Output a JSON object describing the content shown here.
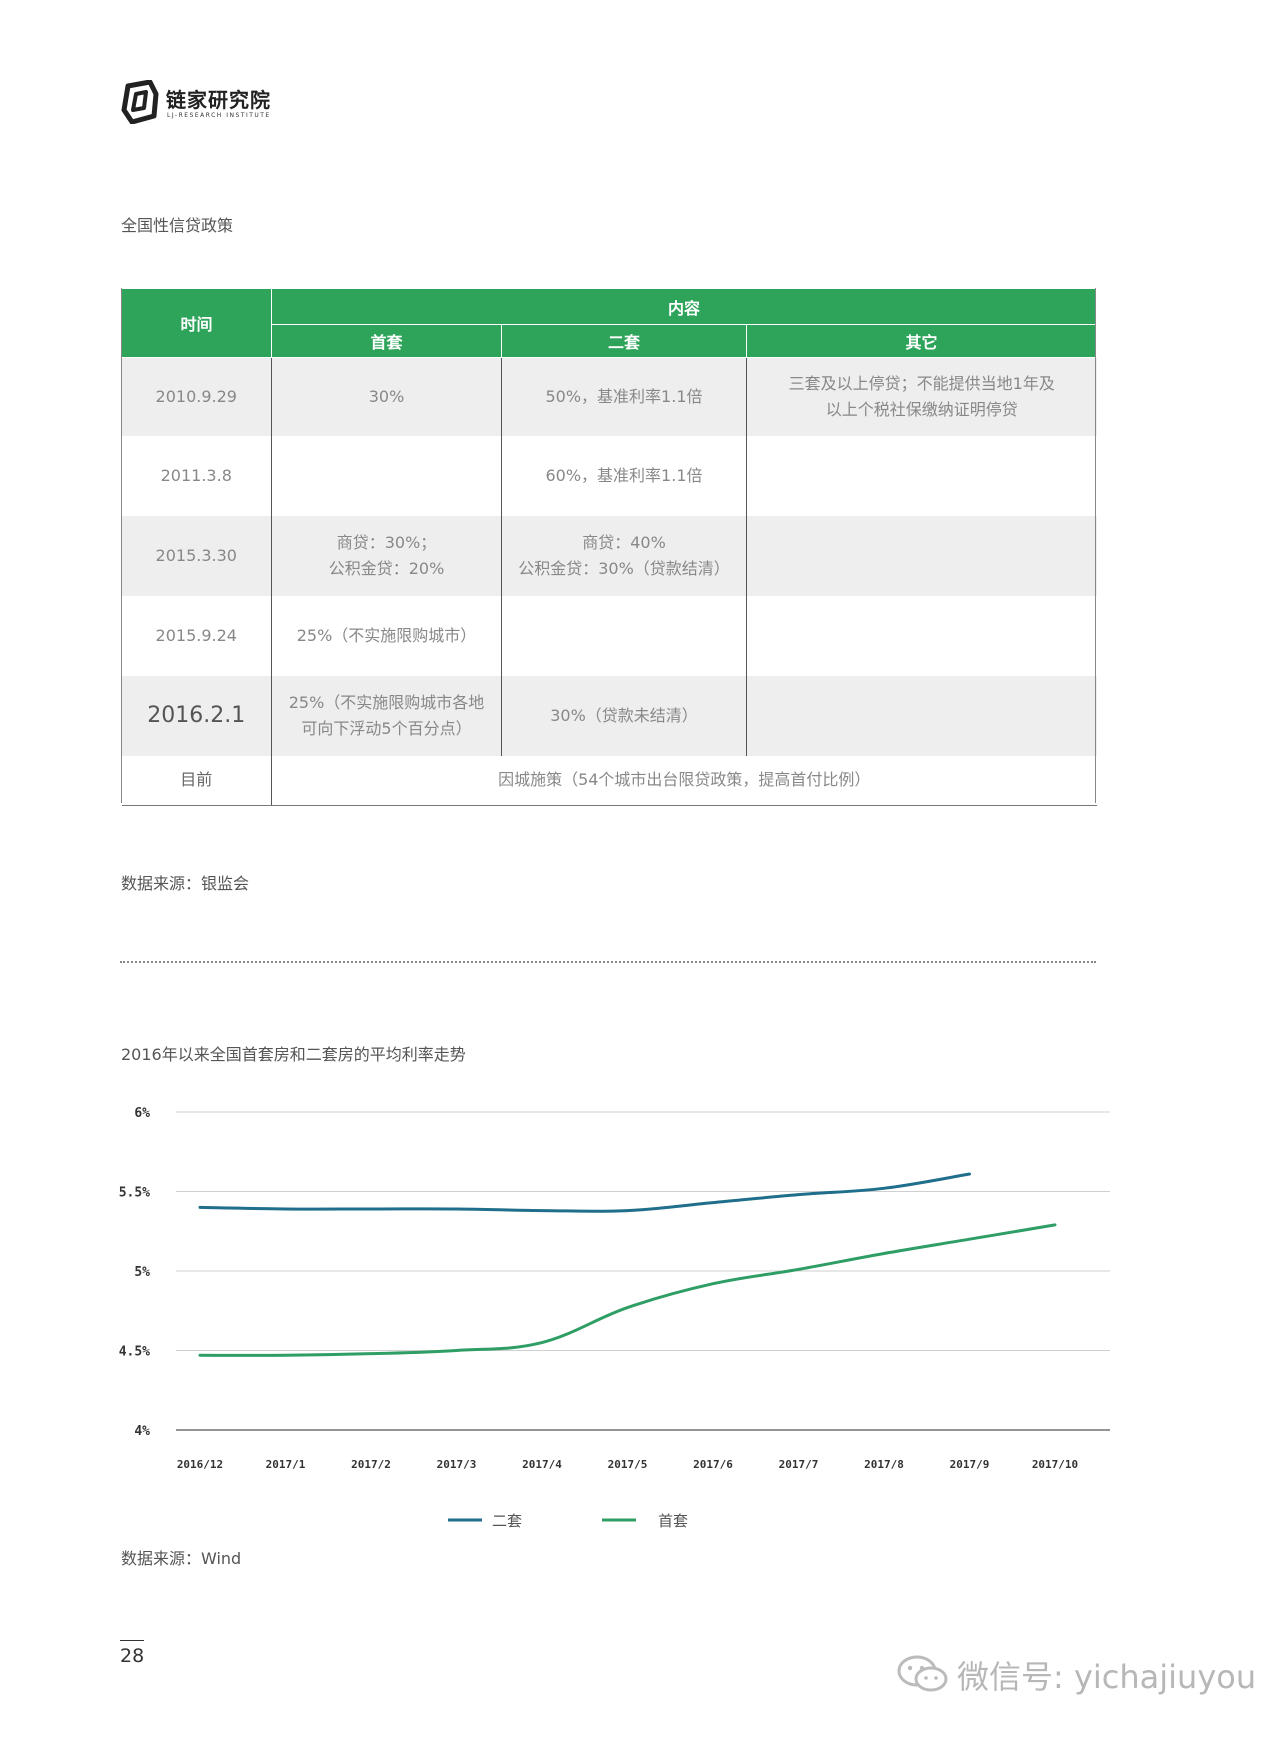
{
  "header": {
    "logo_name": "链家研究院",
    "logo_sub": "LJ-RESEARCH INSTITUTE"
  },
  "table_section": {
    "caption": "全国性信贷政策",
    "headers": {
      "time": "时间",
      "content": "内容",
      "first": "首套",
      "second": "二套",
      "other": "其它"
    },
    "rows": [
      {
        "date": "2010.9.29",
        "first": [
          "30%"
        ],
        "second": [
          "50%，基准利率1.1倍"
        ],
        "other": [
          "三套及以上停贷；不能提供当地1年及",
          "以上个税社保缴纳证明停贷"
        ]
      },
      {
        "date": "2011.3.8",
        "first": [],
        "second": [
          "60%，基准利率1.1倍"
        ],
        "other": []
      },
      {
        "date": "2015.3.30",
        "first": [
          "商贷：30%；",
          "公积金贷：20%"
        ],
        "second": [
          "商贷：40%",
          "公积金贷：30%（贷款结清）"
        ],
        "other": []
      },
      {
        "date": "2015.9.24",
        "first": [
          "25%（不实施限购城市）"
        ],
        "second": [],
        "other": []
      },
      {
        "date": "2016.2.1",
        "first": [
          "25%（不实施限购城市各地",
          "可向下浮动5个百分点）"
        ],
        "second": [
          "30%（贷款未结清）"
        ],
        "other": []
      }
    ],
    "current": {
      "date": "目前",
      "text": "因城施策（54个城市出台限贷政策，提高首付比例）"
    },
    "source": "数据来源：银监会"
  },
  "chart_section": {
    "title": "2016年以来全国首套房和二套房的平均利率走势",
    "source": "数据来源：Wind"
  },
  "chart_data": {
    "type": "line",
    "title": "2016年以来全国首套房和二套房的平均利率走势",
    "xlabel": "",
    "ylabel": "",
    "x": [
      "2016/12",
      "2017/1",
      "2017/2",
      "2017/3",
      "2017/4",
      "2017/5",
      "2017/6",
      "2017/7",
      "2017/8",
      "2017/9",
      "2017/10"
    ],
    "y_ticks": [
      "6%",
      "5.5%",
      "5%",
      "4.5%",
      "4%"
    ],
    "ylim": [
      4,
      6
    ],
    "grid": true,
    "legend": "bottom",
    "series": [
      {
        "name": "二套",
        "color": "#1f6e8c",
        "values": [
          5.4,
          5.39,
          5.39,
          5.39,
          5.38,
          5.38,
          5.43,
          5.48,
          5.52,
          5.61,
          null
        ]
      },
      {
        "name": "首套",
        "color": "#2e9e64",
        "values": [
          4.47,
          4.47,
          4.48,
          4.5,
          4.55,
          4.77,
          4.92,
          5.01,
          5.11,
          5.2,
          5.29
        ]
      }
    ]
  },
  "footer": {
    "page_number": "28",
    "watermark": "微信号: yichajiuyou"
  }
}
